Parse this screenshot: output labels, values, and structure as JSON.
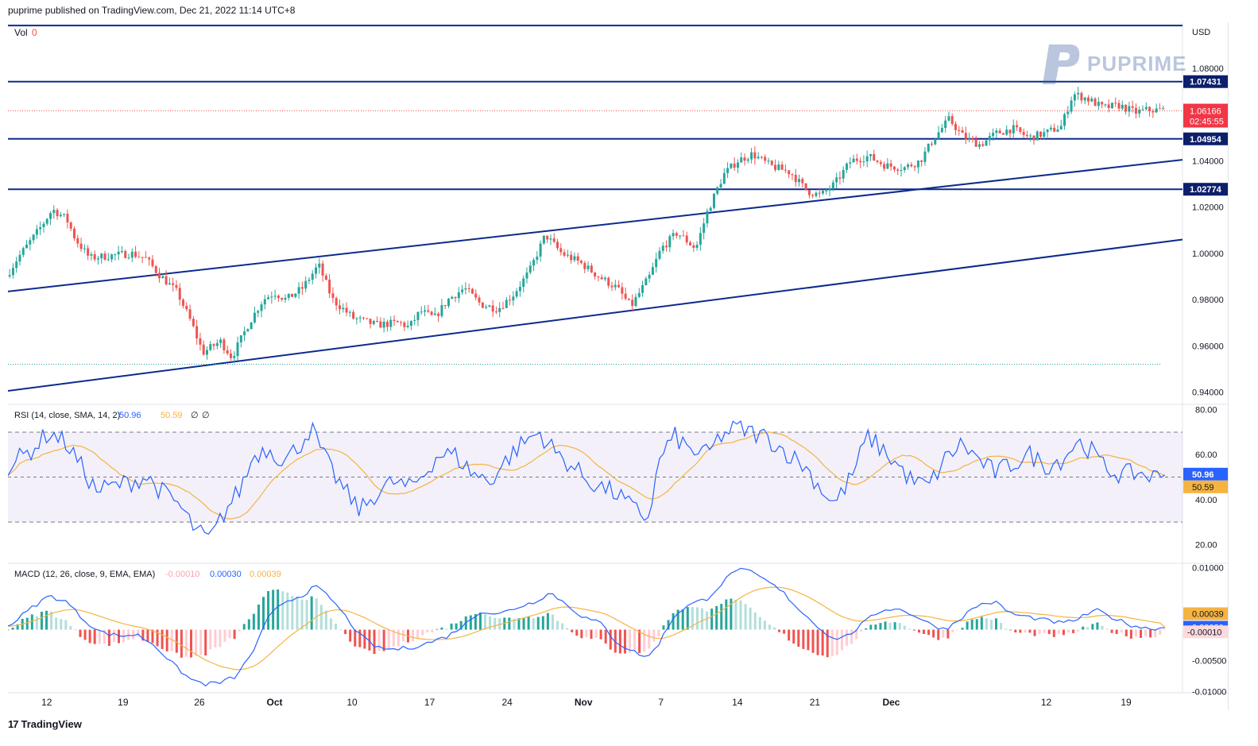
{
  "header": {
    "published": "puprime published on TradingView.com, Dec 21, 2022 11:14 UTC+8"
  },
  "watermark": {
    "text": "PUPRIME"
  },
  "footer": {
    "brand": "TradingView",
    "logo_glyph": "17"
  },
  "colors": {
    "up": "#26a69a",
    "down": "#ef5350",
    "line": "#0d2a8c",
    "rsi": "#2962ff",
    "rsi_ma": "#f5b342",
    "macd": "#2962ff",
    "signal": "#f5b342",
    "last_price_bg": "#f23645"
  },
  "chart_data": [
    {
      "type": "candlestick",
      "pane": "price",
      "currency_label": "USD",
      "volume_label": "Vol",
      "volume_value": "0",
      "y_ticks": [
        "1.08000",
        "1.06000",
        "1.04000",
        "1.02000",
        "1.00000",
        "0.98000",
        "0.96000",
        "0.94000"
      ],
      "y_tick_values": [
        1.08,
        1.06,
        1.04,
        1.02,
        1.0,
        0.98,
        0.96,
        0.94
      ],
      "ylim": [
        0.935,
        1.1
      ],
      "x_ticks": [
        "12",
        "19",
        "26",
        "Oct",
        "10",
        "17",
        "24",
        "Nov",
        "7",
        "14",
        "21",
        "Dec",
        "12",
        "19"
      ],
      "horizontal_levels": [
        {
          "value": 1.07431,
          "label": "1.07431"
        },
        {
          "value": 1.04954,
          "label": "1.04954"
        },
        {
          "value": 1.02774,
          "label": "1.02774"
        }
      ],
      "top_line_value": 1.0986,
      "last_price": {
        "value": 1.06166,
        "label": "1.06166",
        "countdown": "02:45:55"
      },
      "low_marker": 0.952,
      "channel_upper": {
        "start": [
          0,
          0.9835
        ],
        "end": [
          1,
          1.0405
        ]
      },
      "channel_lower": {
        "start": [
          0,
          0.9405
        ],
        "end": [
          1,
          1.006
        ]
      },
      "anchors": [
        [
          0.0,
          0.99
        ],
        [
          0.01,
          0.998
        ],
        [
          0.028,
          1.01
        ],
        [
          0.04,
          1.019
        ],
        [
          0.052,
          1.015
        ],
        [
          0.06,
          1.006
        ],
        [
          0.072,
          0.998
        ],
        [
          0.09,
          0.999
        ],
        [
          0.108,
          1.0
        ],
        [
          0.12,
          0.998
        ],
        [
          0.132,
          0.991
        ],
        [
          0.148,
          0.983
        ],
        [
          0.16,
          0.97
        ],
        [
          0.17,
          0.957
        ],
        [
          0.185,
          0.962
        ],
        [
          0.195,
          0.955
        ],
        [
          0.21,
          0.97
        ],
        [
          0.222,
          0.98
        ],
        [
          0.232,
          0.983
        ],
        [
          0.242,
          0.98
        ],
        [
          0.256,
          0.985
        ],
        [
          0.27,
          0.995
        ],
        [
          0.282,
          0.98
        ],
        [
          0.3,
          0.972
        ],
        [
          0.32,
          0.969
        ],
        [
          0.34,
          0.97
        ],
        [
          0.348,
          0.968
        ],
        [
          0.358,
          0.975
        ],
        [
          0.37,
          0.972
        ],
        [
          0.382,
          0.98
        ],
        [
          0.396,
          0.985
        ],
        [
          0.41,
          0.978
        ],
        [
          0.425,
          0.976
        ],
        [
          0.438,
          0.982
        ],
        [
          0.452,
          0.992
        ],
        [
          0.466,
          1.008
        ],
        [
          0.48,
          1.0
        ],
        [
          0.496,
          0.996
        ],
        [
          0.512,
          0.99
        ],
        [
          0.528,
          0.985
        ],
        [
          0.54,
          0.977
        ],
        [
          0.556,
          0.99
        ],
        [
          0.566,
          1.002
        ],
        [
          0.58,
          1.009
        ],
        [
          0.596,
          1.002
        ],
        [
          0.606,
          1.018
        ],
        [
          0.62,
          1.034
        ],
        [
          0.632,
          1.04
        ],
        [
          0.645,
          1.043
        ],
        [
          0.66,
          1.038
        ],
        [
          0.678,
          1.035
        ],
        [
          0.692,
          1.027
        ],
        [
          0.704,
          1.025
        ],
        [
          0.716,
          1.03
        ],
        [
          0.73,
          1.04
        ],
        [
          0.745,
          1.042
        ],
        [
          0.76,
          1.038
        ],
        [
          0.776,
          1.037
        ],
        [
          0.79,
          1.04
        ],
        [
          0.802,
          1.05
        ],
        [
          0.815,
          1.058
        ],
        [
          0.828,
          1.05
        ],
        [
          0.842,
          1.047
        ],
        [
          0.856,
          1.052
        ],
        [
          0.87,
          1.054
        ],
        [
          0.884,
          1.05
        ],
        [
          0.898,
          1.052
        ],
        [
          0.912,
          1.055
        ],
        [
          0.922,
          1.069
        ],
        [
          0.934,
          1.067
        ],
        [
          0.948,
          1.063
        ],
        [
          0.962,
          1.064
        ],
        [
          0.976,
          1.061
        ],
        [
          0.985,
          1.062
        ]
      ]
    },
    {
      "type": "line",
      "pane": "rsi",
      "legend": {
        "label": "RSI (14, close, SMA, 14, 2)",
        "rsi": "50.96",
        "ma": "50.59",
        "extra1": "∅",
        "extra2": "∅"
      },
      "y_ticks": [
        "80.00",
        "60.00",
        "40.00",
        "20.00"
      ],
      "y_tick_values": [
        80,
        60,
        40,
        20
      ],
      "ylim": [
        12,
        82
      ],
      "band": [
        30,
        70
      ],
      "midline": 50,
      "rsi_value": 50.96,
      "ma_value": 50.59,
      "anchors": [
        [
          0.0,
          55
        ],
        [
          0.02,
          62
        ],
        [
          0.035,
          70
        ],
        [
          0.05,
          65
        ],
        [
          0.062,
          55
        ],
        [
          0.075,
          44
        ],
        [
          0.09,
          46
        ],
        [
          0.105,
          48
        ],
        [
          0.118,
          50
        ],
        [
          0.13,
          44
        ],
        [
          0.145,
          38
        ],
        [
          0.16,
          26
        ],
        [
          0.172,
          22
        ],
        [
          0.185,
          35
        ],
        [
          0.198,
          45
        ],
        [
          0.21,
          60
        ],
        [
          0.222,
          63
        ],
        [
          0.235,
          57
        ],
        [
          0.248,
          64
        ],
        [
          0.258,
          72
        ],
        [
          0.27,
          58
        ],
        [
          0.285,
          45
        ],
        [
          0.3,
          35
        ],
        [
          0.312,
          42
        ],
        [
          0.328,
          48
        ],
        [
          0.342,
          45
        ],
        [
          0.355,
          52
        ],
        [
          0.366,
          60
        ],
        [
          0.38,
          60
        ],
        [
          0.395,
          52
        ],
        [
          0.41,
          48
        ],
        [
          0.425,
          58
        ],
        [
          0.438,
          65
        ],
        [
          0.452,
          70
        ],
        [
          0.468,
          60
        ],
        [
          0.48,
          55
        ],
        [
          0.495,
          48
        ],
        [
          0.508,
          45
        ],
        [
          0.52,
          42
        ],
        [
          0.532,
          36
        ],
        [
          0.545,
          32
        ],
        [
          0.556,
          60
        ],
        [
          0.568,
          68
        ],
        [
          0.58,
          62
        ],
        [
          0.596,
          60
        ],
        [
          0.606,
          68
        ],
        [
          0.62,
          72
        ],
        [
          0.632,
          70
        ],
        [
          0.645,
          68
        ],
        [
          0.66,
          62
        ],
        [
          0.678,
          55
        ],
        [
          0.692,
          45
        ],
        [
          0.704,
          38
        ],
        [
          0.718,
          50
        ],
        [
          0.732,
          68
        ],
        [
          0.745,
          62
        ],
        [
          0.758,
          55
        ],
        [
          0.77,
          48
        ],
        [
          0.784,
          46
        ],
        [
          0.798,
          58
        ],
        [
          0.812,
          65
        ],
        [
          0.826,
          58
        ],
        [
          0.84,
          52
        ],
        [
          0.856,
          56
        ],
        [
          0.87,
          60
        ],
        [
          0.884,
          55
        ],
        [
          0.898,
          58
        ],
        [
          0.91,
          66
        ],
        [
          0.922,
          62
        ],
        [
          0.934,
          54
        ],
        [
          0.948,
          51
        ],
        [
          0.962,
          52
        ],
        [
          0.976,
          50
        ],
        [
          0.985,
          50.96
        ]
      ]
    },
    {
      "type": "histogram",
      "pane": "macd",
      "legend": {
        "label": "MACD (12, 26, close, 9, EMA, EMA)",
        "hist": "-0.00010",
        "macd": "0.00030",
        "signal": "0.00039"
      },
      "y_ticks": [
        "0.01000",
        "0.00000",
        "-0.00500",
        "-0.01000"
      ],
      "y_tick_values": [
        0.01,
        0.0,
        -0.005,
        -0.01
      ],
      "ylim": [
        -0.0102,
        0.0106
      ],
      "macd_value": 0.0003,
      "signal_value": 0.00039,
      "hist_value": -0.0001,
      "anchors": [
        [
          0.0,
          0.0005
        ],
        [
          0.02,
          0.0035
        ],
        [
          0.035,
          0.0055
        ],
        [
          0.05,
          0.0045
        ],
        [
          0.065,
          0.0015
        ],
        [
          0.08,
          -0.0005
        ],
        [
          0.095,
          -0.001
        ],
        [
          0.11,
          -0.0008
        ],
        [
          0.125,
          -0.0025
        ],
        [
          0.14,
          -0.0055
        ],
        [
          0.155,
          -0.008
        ],
        [
          0.168,
          -0.0088
        ],
        [
          0.18,
          -0.0086
        ],
        [
          0.195,
          -0.0075
        ],
        [
          0.21,
          -0.003
        ],
        [
          0.222,
          0.002
        ],
        [
          0.235,
          0.0045
        ],
        [
          0.25,
          0.0055
        ],
        [
          0.262,
          0.007
        ],
        [
          0.275,
          0.005
        ],
        [
          0.288,
          0.002
        ],
        [
          0.3,
          -0.001
        ],
        [
          0.315,
          -0.003
        ],
        [
          0.33,
          -0.0032
        ],
        [
          0.345,
          -0.0028
        ],
        [
          0.36,
          -0.002
        ],
        [
          0.375,
          -0.001
        ],
        [
          0.39,
          0.001
        ],
        [
          0.402,
          0.003
        ],
        [
          0.418,
          0.0025
        ],
        [
          0.432,
          0.0035
        ],
        [
          0.448,
          0.0045
        ],
        [
          0.462,
          0.006
        ],
        [
          0.476,
          0.004
        ],
        [
          0.49,
          0.002
        ],
        [
          0.505,
          0.001
        ],
        [
          0.518,
          -0.002
        ],
        [
          0.532,
          -0.0035
        ],
        [
          0.545,
          -0.0045
        ],
        [
          0.555,
          -0.002
        ],
        [
          0.568,
          0.0025
        ],
        [
          0.58,
          0.004
        ],
        [
          0.595,
          0.005
        ],
        [
          0.608,
          0.0075
        ],
        [
          0.62,
          0.0098
        ],
        [
          0.632,
          0.0093
        ],
        [
          0.645,
          0.008
        ],
        [
          0.66,
          0.006
        ],
        [
          0.675,
          0.003
        ],
        [
          0.69,
          0.0005
        ],
        [
          0.702,
          -0.0015
        ],
        [
          0.715,
          -0.001
        ],
        [
          0.728,
          0.001
        ],
        [
          0.742,
          0.003
        ],
        [
          0.755,
          0.0035
        ],
        [
          0.77,
          0.0025
        ],
        [
          0.784,
          0.001
        ],
        [
          0.798,
          0.0
        ],
        [
          0.812,
          0.002
        ],
        [
          0.826,
          0.004
        ],
        [
          0.84,
          0.0045
        ],
        [
          0.855,
          0.0025
        ],
        [
          0.87,
          0.002
        ],
        [
          0.884,
          0.0015
        ],
        [
          0.898,
          0.001
        ],
        [
          0.912,
          0.0018
        ],
        [
          0.926,
          0.0032
        ],
        [
          0.94,
          0.002
        ],
        [
          0.955,
          0.0008
        ],
        [
          0.97,
          0.0002
        ],
        [
          0.985,
          0.0003
        ]
      ]
    }
  ]
}
